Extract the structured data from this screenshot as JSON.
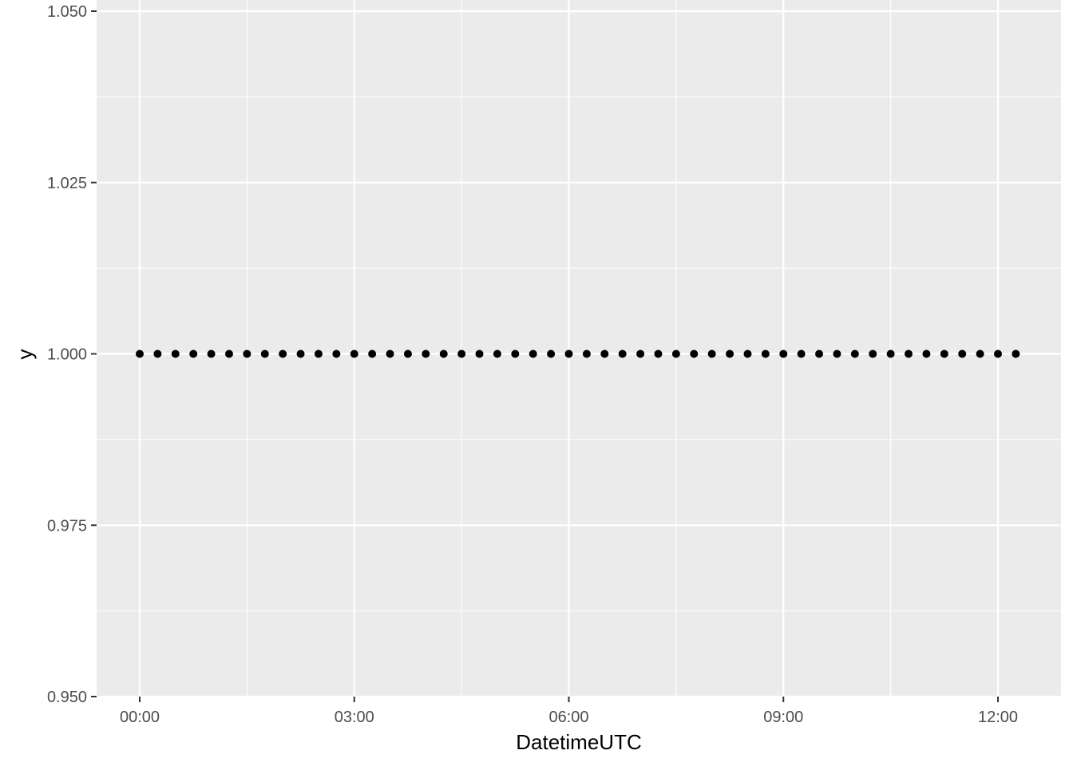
{
  "chart_data": {
    "type": "scatter",
    "title": "",
    "xlabel": "DatetimeUTC",
    "ylabel": "y",
    "x_type": "time",
    "xlim": [
      "00:00",
      "12:15"
    ],
    "ylim": [
      0.95,
      1.05
    ],
    "x_ticks": [
      "00:00",
      "03:00",
      "06:00",
      "09:00",
      "12:00"
    ],
    "y_ticks": [
      "0.950",
      "0.975",
      "1.000",
      "1.025",
      "1.050"
    ],
    "grid": true,
    "legend": "none",
    "point_color": "#000000",
    "panel_background": "#ebebeb",
    "grid_color": "#ffffff",
    "series": [
      {
        "x": [
          "00:00",
          "00:15",
          "00:30",
          "00:45",
          "01:00",
          "01:15",
          "01:30",
          "01:45",
          "02:00",
          "02:15",
          "02:30",
          "02:45",
          "03:00",
          "03:15",
          "03:30",
          "03:45",
          "04:00",
          "04:15",
          "04:30",
          "04:45",
          "05:00",
          "05:15",
          "05:30",
          "05:45",
          "06:00",
          "06:15",
          "06:30",
          "06:45",
          "07:00",
          "07:15",
          "07:30",
          "07:45",
          "08:00",
          "08:15",
          "08:30",
          "08:45",
          "09:00",
          "09:15",
          "09:30",
          "09:45",
          "10:00",
          "10:15",
          "10:30",
          "10:45",
          "11:00",
          "11:15",
          "11:30",
          "11:45",
          "12:00",
          "12:15"
        ],
        "y": [
          1,
          1,
          1,
          1,
          1,
          1,
          1,
          1,
          1,
          1,
          1,
          1,
          1,
          1,
          1,
          1,
          1,
          1,
          1,
          1,
          1,
          1,
          1,
          1,
          1,
          1,
          1,
          1,
          1,
          1,
          1,
          1,
          1,
          1,
          1,
          1,
          1,
          1,
          1,
          1,
          1,
          1,
          1,
          1,
          1,
          1,
          1,
          1,
          1,
          1
        ]
      }
    ]
  }
}
